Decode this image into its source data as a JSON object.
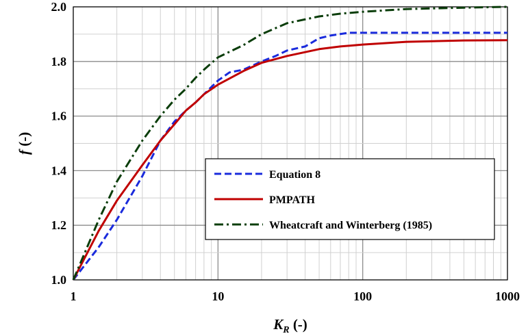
{
  "chart_data": {
    "type": "line",
    "xscale": "log",
    "xlim": [
      1,
      1000
    ],
    "ylim": [
      1.0,
      2.0
    ],
    "xlabel_main": "K",
    "xlabel_sub": "R",
    "xlabel_suffix": " (-)",
    "ylabel_main": "f",
    "ylabel_suffix": " (-)",
    "x_ticks": [
      "1",
      "10",
      "100",
      "1000"
    ],
    "y_ticks": [
      "1.0",
      "1.2",
      "1.4",
      "1.6",
      "1.8",
      "2.0"
    ],
    "grid": true,
    "legend_position": "lower-right",
    "series": [
      {
        "name": "Equation 8",
        "color": "#1a2bdc",
        "dash": "dashed",
        "x": [
          1,
          1.5,
          2,
          3,
          4,
          5,
          6,
          7,
          8,
          10,
          12,
          15,
          20,
          25,
          30,
          40,
          50,
          60,
          80,
          100,
          200,
          500,
          1000
        ],
        "y": [
          1.0,
          1.12,
          1.22,
          1.38,
          1.51,
          1.58,
          1.62,
          1.65,
          1.68,
          1.73,
          1.76,
          1.77,
          1.8,
          1.82,
          1.84,
          1.855,
          1.885,
          1.895,
          1.905,
          1.905,
          1.905,
          1.905,
          1.905
        ]
      },
      {
        "name": "PMPATH",
        "color": "#c00000",
        "dash": "solid",
        "x": [
          1,
          1.5,
          2,
          3,
          4,
          5,
          6,
          7,
          8,
          10,
          15,
          20,
          30,
          50,
          70,
          100,
          200,
          500,
          1000
        ],
        "y": [
          1.0,
          1.18,
          1.29,
          1.42,
          1.51,
          1.57,
          1.62,
          1.65,
          1.68,
          1.715,
          1.765,
          1.795,
          1.82,
          1.845,
          1.855,
          1.862,
          1.872,
          1.877,
          1.878
        ]
      },
      {
        "name": "Wheatcraft and Winterberg (1985)",
        "color": "#0a3d0a",
        "dash": "dashdot",
        "x": [
          1,
          1.5,
          2,
          3,
          4,
          5,
          6,
          7,
          8,
          10,
          15,
          20,
          30,
          50,
          70,
          100,
          200,
          500,
          1000
        ],
        "y": [
          1.0,
          1.22,
          1.36,
          1.51,
          1.6,
          1.66,
          1.7,
          1.74,
          1.77,
          1.815,
          1.86,
          1.9,
          1.94,
          1.965,
          1.975,
          1.982,
          1.992,
          1.997,
          2.0
        ]
      }
    ]
  }
}
